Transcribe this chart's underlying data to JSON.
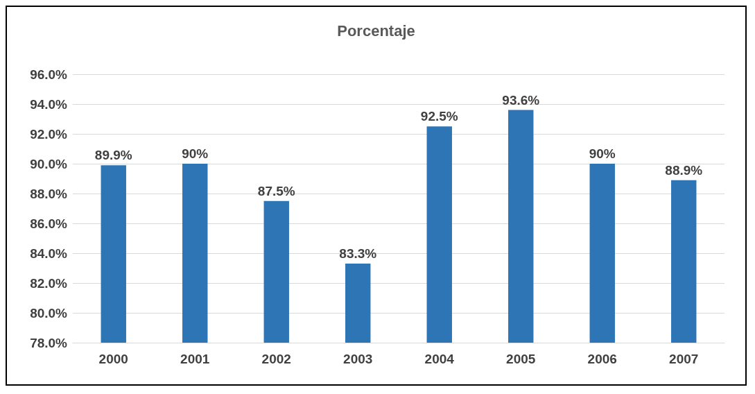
{
  "chart_data": {
    "type": "bar",
    "title": "Porcentaje",
    "categories": [
      "2000",
      "2001",
      "2002",
      "2003",
      "2004",
      "2005",
      "2006",
      "2007"
    ],
    "values": [
      89.9,
      90,
      87.5,
      83.3,
      92.5,
      93.6,
      90,
      88.9
    ],
    "value_labels": [
      "89.9%",
      "90%",
      "87.5%",
      "83.3%",
      "92.5%",
      "93.6%",
      "90%",
      "88.9%"
    ],
    "color": "#2e75b6",
    "ylim": [
      78,
      96
    ],
    "yticks": [
      {
        "value": 78,
        "label": "78.0%"
      },
      {
        "value": 80,
        "label": "80.0%"
      },
      {
        "value": 82,
        "label": "82.0%"
      },
      {
        "value": 84,
        "label": "84.0%"
      },
      {
        "value": 86,
        "label": "86.0%"
      },
      {
        "value": 88,
        "label": "88.0%"
      },
      {
        "value": 90,
        "label": "90.0%"
      },
      {
        "value": 92,
        "label": "92.0%"
      },
      {
        "value": 94,
        "label": "94.0%"
      },
      {
        "value": 96,
        "label": "96.0%"
      }
    ],
    "grid": "y"
  }
}
